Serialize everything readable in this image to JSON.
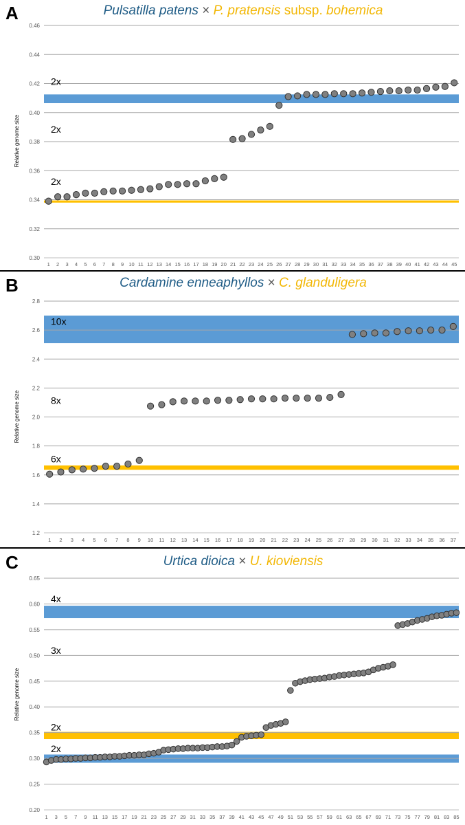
{
  "colors": {
    "band_blue": "#5b9bd5",
    "band_yellow": "#ffc000",
    "title_blue": "#1f5c86",
    "title_yellow": "#f2b705",
    "point_fill": "#808080",
    "point_stroke": "#333333",
    "gridline": "#a6a6a6",
    "divider": "#000000"
  },
  "chart_data": [
    {
      "type": "scatter",
      "panel_label": "A",
      "title_parts": [
        {
          "text": "Pulsatilla patens",
          "style": "italic",
          "color": "blue"
        },
        {
          "text": " × ",
          "style": "normal",
          "color": "gray"
        },
        {
          "text": "P. pratensis",
          "style": "italic",
          "color": "yellow"
        },
        {
          "text": " subsp. ",
          "style": "normal",
          "color": "yellow"
        },
        {
          "text": "bohemica",
          "style": "italic",
          "color": "yellow"
        }
      ],
      "ylabel": "Relative genome size",
      "ylim": [
        0.3,
        0.46
      ],
      "yticks": [
        "0.30",
        "0.32",
        "0.34",
        "0.36",
        "0.38",
        "0.40",
        "0.42",
        "0.44",
        "0.46"
      ],
      "x_tick_step": 1,
      "bands": [
        {
          "color": "blue",
          "ymin": 0.4065,
          "ymax": 0.4125
        },
        {
          "color": "yellow",
          "ymin": 0.338,
          "ymax": 0.3395
        }
      ],
      "annotations": [
        {
          "text": "2x",
          "y": 0.4215
        },
        {
          "text": "2x",
          "y": 0.3885
        },
        {
          "text": "2x",
          "y": 0.3525
        }
      ],
      "x": [
        1,
        2,
        3,
        4,
        5,
        6,
        7,
        8,
        9,
        10,
        11,
        12,
        13,
        14,
        15,
        16,
        17,
        18,
        19,
        20,
        21,
        22,
        23,
        24,
        25,
        26,
        27,
        28,
        29,
        30,
        31,
        32,
        33,
        34,
        35,
        36,
        37,
        38,
        39,
        40,
        41,
        42,
        43,
        44,
        45
      ],
      "y": [
        0.339,
        0.342,
        0.342,
        0.3435,
        0.3445,
        0.3445,
        0.3455,
        0.346,
        0.346,
        0.3465,
        0.347,
        0.3475,
        0.349,
        0.3505,
        0.3505,
        0.351,
        0.351,
        0.353,
        0.3545,
        0.3555,
        0.3815,
        0.382,
        0.385,
        0.388,
        0.3905,
        0.405,
        0.411,
        0.4115,
        0.4125,
        0.4125,
        0.4125,
        0.413,
        0.413,
        0.413,
        0.4135,
        0.414,
        0.4145,
        0.415,
        0.415,
        0.4155,
        0.4155,
        0.4165,
        0.4175,
        0.418,
        0.4205
      ]
    },
    {
      "type": "scatter",
      "panel_label": "B",
      "title_parts": [
        {
          "text": "Cardamine enneaphyllos",
          "style": "italic",
          "color": "blue"
        },
        {
          "text": " × ",
          "style": "normal",
          "color": "gray"
        },
        {
          "text": "C. glanduligera",
          "style": "italic",
          "color": "yellow"
        }
      ],
      "ylabel": "Relative genome size",
      "ylim": [
        1.2,
        2.8
      ],
      "yticks": [
        "1.2",
        "1.4",
        "1.6",
        "1.8",
        "2.0",
        "2.2",
        "2.4",
        "2.6",
        "2.8"
      ],
      "x_tick_step": 1,
      "bands": [
        {
          "color": "blue",
          "ymin": 2.51,
          "ymax": 2.7
        },
        {
          "color": "yellow",
          "ymin": 1.635,
          "ymax": 1.665
        }
      ],
      "annotations": [
        {
          "text": "10x",
          "y": 2.66
        },
        {
          "text": "8x",
          "y": 2.115
        },
        {
          "text": "6x",
          "y": 1.71
        }
      ],
      "x": [
        1,
        2,
        3,
        4,
        5,
        6,
        7,
        8,
        9,
        10,
        11,
        12,
        13,
        14,
        15,
        16,
        17,
        18,
        19,
        20,
        21,
        22,
        23,
        24,
        25,
        26,
        27,
        28,
        29,
        30,
        31,
        32,
        33,
        34,
        35,
        36,
        37
      ],
      "y": [
        1.605,
        1.62,
        1.635,
        1.64,
        1.645,
        1.66,
        1.66,
        1.675,
        1.7,
        2.075,
        2.085,
        2.105,
        2.11,
        2.11,
        2.11,
        2.115,
        2.115,
        2.12,
        2.125,
        2.125,
        2.125,
        2.13,
        2.13,
        2.13,
        2.13,
        2.135,
        2.155,
        2.57,
        2.575,
        2.58,
        2.58,
        2.59,
        2.595,
        2.595,
        2.6,
        2.6,
        2.625
      ]
    },
    {
      "type": "scatter",
      "panel_label": "C",
      "title_parts": [
        {
          "text": "Urtica dioica",
          "style": "italic",
          "color": "blue"
        },
        {
          "text": " × ",
          "style": "normal",
          "color": "gray"
        },
        {
          "text": "U. kioviensis",
          "style": "italic",
          "color": "yellow"
        }
      ],
      "ylabel": "Relative genome size",
      "ylim": [
        0.2,
        0.65
      ],
      "yticks": [
        "0.20",
        "0.25",
        "0.30",
        "0.35",
        "0.40",
        "0.45",
        "0.50",
        "0.55",
        "0.60",
        "0.65"
      ],
      "x_tick_step": 2,
      "bands": [
        {
          "color": "blue",
          "ymin": 0.5725,
          "ymax": 0.5965
        },
        {
          "color": "yellow",
          "ymin": 0.3375,
          "ymax": 0.3515
        },
        {
          "color": "blue",
          "ymin": 0.2915,
          "ymax": 0.3075
        }
      ],
      "annotations": [
        {
          "text": "4x",
          "y": 0.61
        },
        {
          "text": "3x",
          "y": 0.51
        },
        {
          "text": "2x",
          "y": 0.361
        },
        {
          "text": "2x",
          "y": 0.319
        }
      ],
      "x": [
        1,
        2,
        3,
        4,
        5,
        6,
        7,
        8,
        9,
        10,
        11,
        12,
        13,
        14,
        15,
        16,
        17,
        18,
        19,
        20,
        21,
        22,
        23,
        24,
        25,
        26,
        27,
        28,
        29,
        30,
        31,
        32,
        33,
        34,
        35,
        36,
        37,
        38,
        39,
        40,
        41,
        42,
        43,
        44,
        45,
        46,
        47,
        48,
        49,
        50,
        51,
        52,
        53,
        54,
        55,
        56,
        57,
        58,
        59,
        60,
        61,
        62,
        63,
        64,
        65,
        66,
        67,
        68,
        69,
        70,
        71,
        72,
        73,
        74,
        75,
        76,
        77,
        78,
        79,
        80,
        81,
        82,
        83,
        84,
        85
      ],
      "y": [
        0.293,
        0.296,
        0.298,
        0.298,
        0.299,
        0.299,
        0.3,
        0.3,
        0.301,
        0.301,
        0.302,
        0.302,
        0.303,
        0.303,
        0.304,
        0.304,
        0.305,
        0.306,
        0.306,
        0.307,
        0.307,
        0.309,
        0.31,
        0.312,
        0.316,
        0.317,
        0.318,
        0.319,
        0.319,
        0.32,
        0.32,
        0.32,
        0.321,
        0.321,
        0.322,
        0.323,
        0.323,
        0.324,
        0.326,
        0.333,
        0.341,
        0.343,
        0.344,
        0.345,
        0.346,
        0.36,
        0.364,
        0.366,
        0.368,
        0.371,
        0.432,
        0.446,
        0.449,
        0.451,
        0.453,
        0.454,
        0.455,
        0.456,
        0.458,
        0.459,
        0.461,
        0.462,
        0.463,
        0.464,
        0.465,
        0.466,
        0.468,
        0.472,
        0.475,
        0.477,
        0.479,
        0.482,
        0.558,
        0.56,
        0.562,
        0.565,
        0.568,
        0.57,
        0.572,
        0.575,
        0.577,
        0.578,
        0.58,
        0.582,
        0.583
      ]
    }
  ]
}
